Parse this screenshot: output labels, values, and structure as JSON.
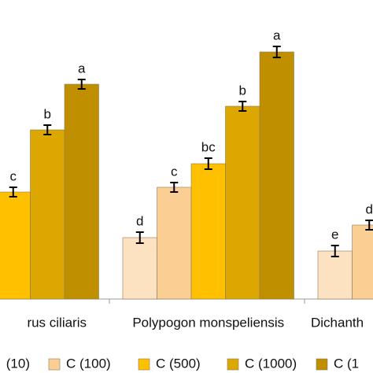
{
  "chart_data": {
    "type": "bar",
    "categories": [
      "rus ciliaris",
      "Polypogon monspeliensis",
      "Dichanth"
    ],
    "ylim": [
      0,
      380
    ],
    "series": [
      {
        "name": "(10)",
        "color": "#fde2c2",
        "values": [
          null,
          78,
          61
        ],
        "errors": [
          null,
          7,
          7
        ],
        "value_labels": [
          null,
          "d",
          "e"
        ]
      },
      {
        "name": "C (100)",
        "color": "#fbcf94",
        "values": [
          null,
          142,
          94
        ],
        "errors": [
          null,
          6,
          6
        ],
        "value_labels": [
          null,
          "c",
          "d"
        ]
      },
      {
        "name": "C (500)",
        "color": "#ffc000",
        "values": [
          136,
          172,
          null
        ],
        "errors": [
          6,
          7,
          null
        ],
        "value_labels": [
          "c",
          "bc",
          null
        ]
      },
      {
        "name": "C (1000)",
        "color": "#dca700",
        "values": [
          215,
          245,
          null
        ],
        "errors": [
          6,
          6,
          null
        ],
        "value_labels": [
          "b",
          "b",
          null
        ]
      },
      {
        "name": "C (1",
        "color": "#bf8f00",
        "values": [
          273,
          314,
          null
        ],
        "errors": [
          6,
          7,
          null
        ],
        "value_labels": [
          "a",
          "a",
          null
        ]
      }
    ]
  }
}
